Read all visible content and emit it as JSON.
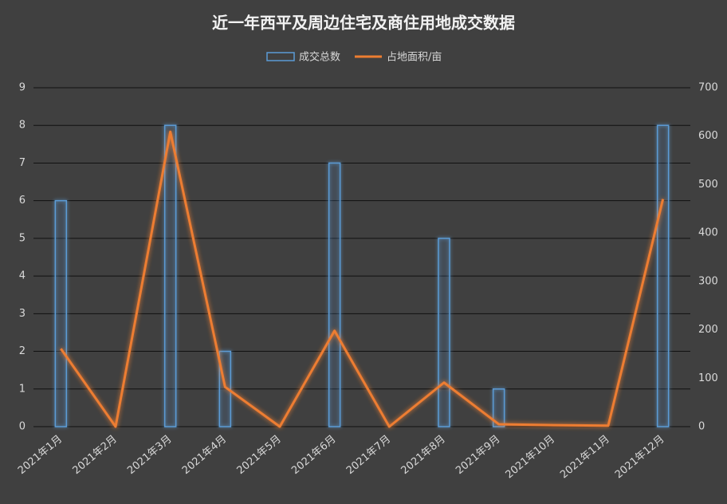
{
  "chart_data": {
    "type": "bar-line",
    "title": "近一年西平及周边住宅及商住用地成交数据",
    "categories": [
      "2021年1月",
      "2021年2月",
      "2021年3月",
      "2021年4月",
      "2021年5月",
      "2021年6月",
      "2021年7月",
      "2021年8月",
      "2021年9月",
      "2021年10月",
      "2021年11月",
      "2021年12月"
    ],
    "series": [
      {
        "name": "成交总数",
        "type": "bar",
        "color": "#5b9bd5",
        "values": [
          6,
          0,
          8,
          2,
          0,
          7,
          0,
          5,
          1,
          0,
          0,
          8
        ]
      },
      {
        "name": "占地面积/亩",
        "type": "line",
        "axis": "y2",
        "color": "#ed7d31",
        "values": [
          161,
          0,
          609,
          82,
          0,
          198,
          0,
          91,
          5,
          3,
          2,
          470
        ]
      }
    ],
    "ylim": [
      0,
      9
    ],
    "yticks": [
      0,
      1,
      2,
      3,
      4,
      5,
      6,
      7,
      8,
      9
    ],
    "y2lim": [
      0,
      700
    ],
    "y2ticks": [
      0,
      100,
      200,
      300,
      400,
      500,
      600,
      700
    ],
    "grid": true
  }
}
